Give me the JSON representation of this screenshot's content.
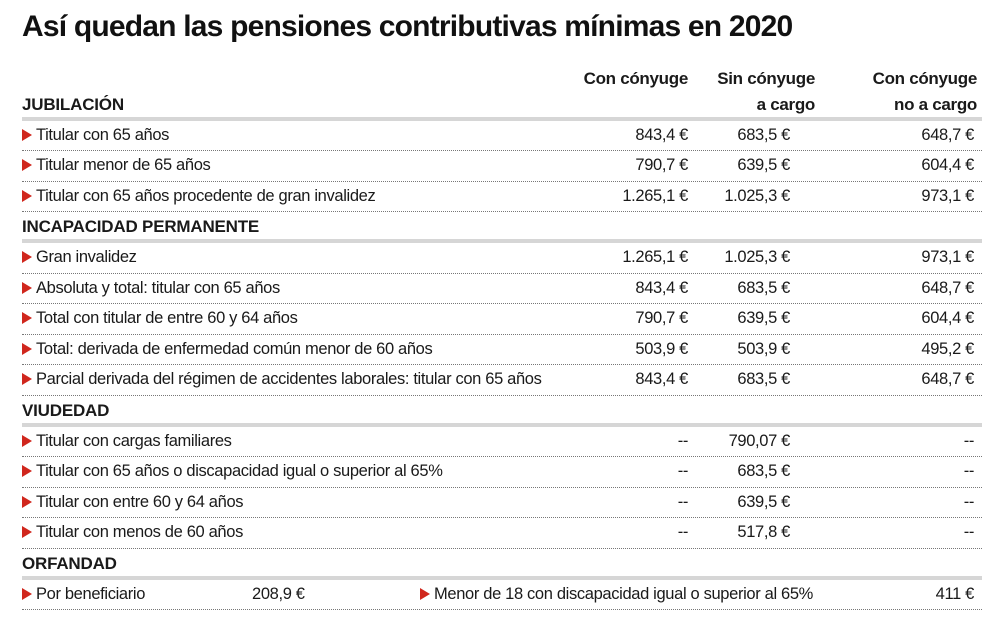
{
  "title": "Así quedan las pensiones contributivas mínimas en 2020",
  "columns": [
    "Con cónyuge",
    "Sin cónyuge a cargo",
    "Con cónyuge no a cargo"
  ],
  "columns_lines": [
    [
      "Con cónyuge"
    ],
    [
      "Sin cónyuge",
      "a cargo"
    ],
    [
      "Con cónyuge",
      "no a cargo"
    ]
  ],
  "accent_color": "#d0271d",
  "sections": [
    {
      "name": "JUBILACIÓN",
      "rows": [
        {
          "label": "Titular con 65 años",
          "values": [
            "843,4 €",
            "683,5 €",
            "648,7 €"
          ]
        },
        {
          "label": "Titular menor de 65 años",
          "values": [
            "790,7 €",
            "639,5 €",
            "604,4 €"
          ]
        },
        {
          "label": "Titular con 65 años procedente de gran invalidez",
          "values": [
            "1.265,1 €",
            "1.025,3 €",
            "973,1 €"
          ]
        }
      ]
    },
    {
      "name": "INCAPACIDAD PERMANENTE",
      "rows": [
        {
          "label": "Gran invalidez",
          "values": [
            "1.265,1 €",
            "1.025,3 €",
            "973,1 €"
          ]
        },
        {
          "label": "Absoluta y total: titular con 65 años",
          "values": [
            "843,4 €",
            "683,5 €",
            "648,7 €"
          ]
        },
        {
          "label": "Total con titular de entre 60 y 64 años",
          "values": [
            "790,7 €",
            "639,5 €",
            "604,4 €"
          ]
        },
        {
          "label": "Total: derivada de enfermedad común menor de 60 años",
          "values": [
            "503,9 €",
            "503,9 €",
            "495,2 €"
          ]
        },
        {
          "label": "Parcial derivada del régimen de accidentes laborales: titular con 65 años",
          "values": [
            "843,4 €",
            "683,5 €",
            "648,7 €"
          ]
        }
      ]
    },
    {
      "name": "VIUDEDAD",
      "rows": [
        {
          "label": "Titular con cargas familiares",
          "values": [
            "--",
            "790,07 €",
            "--"
          ]
        },
        {
          "label": "Titular con 65 años o discapacidad igual o superior al 65%",
          "values": [
            "--",
            "683,5 €",
            "--"
          ]
        },
        {
          "label": "Titular con entre 60 y 64 años",
          "values": [
            "--",
            "639,5 €",
            "--"
          ]
        },
        {
          "label": "Titular con menos de 60 años",
          "values": [
            "--",
            "517,8 €",
            "--"
          ]
        }
      ]
    },
    {
      "name": "ORFANDAD",
      "items": [
        {
          "label": "Por beneficiario",
          "value": "208,9 €"
        },
        {
          "label": "Menor de 18 con discapacidad igual o superior al 65%",
          "value": "411 €"
        }
      ]
    }
  ]
}
